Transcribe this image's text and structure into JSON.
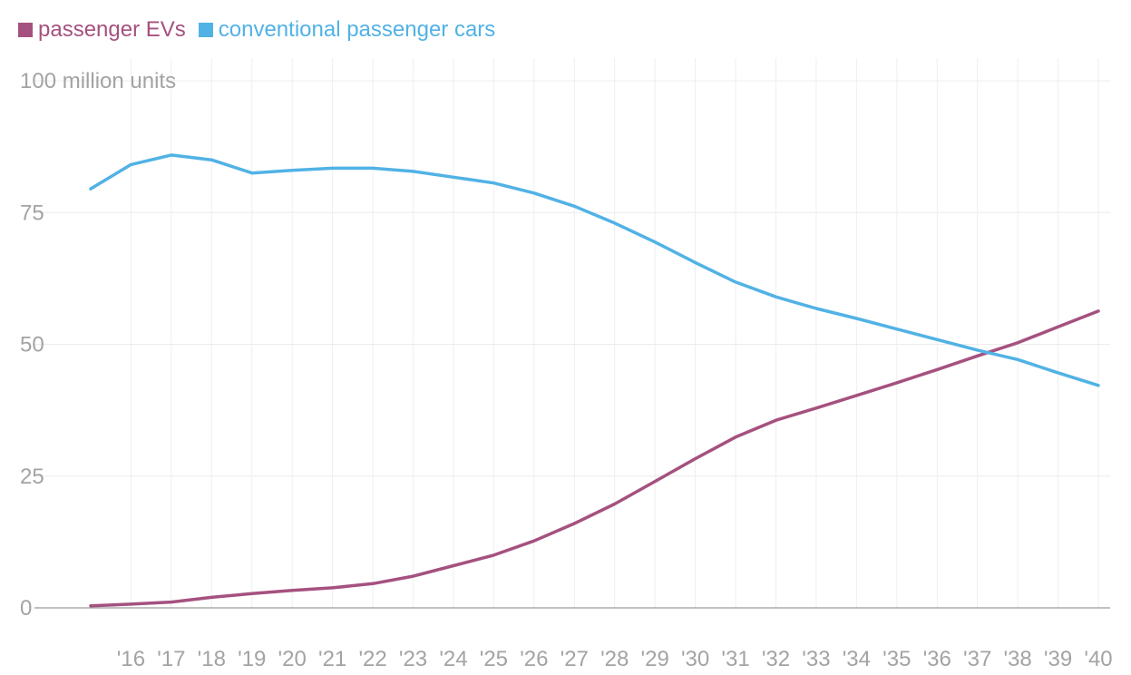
{
  "legend": {
    "items": [
      {
        "label": "passenger EVs",
        "color": "#a5517f"
      },
      {
        "label": "conventional passenger cars",
        "color": "#51b2e5"
      }
    ]
  },
  "chart_data": {
    "type": "line",
    "title": "",
    "xlabel": "",
    "ylabel": "",
    "y_unit_label": "100 million units",
    "x": [
      2015,
      2016,
      2017,
      2018,
      2019,
      2020,
      2021,
      2022,
      2023,
      2024,
      2025,
      2026,
      2027,
      2028,
      2029,
      2030,
      2031,
      2032,
      2033,
      2034,
      2035,
      2036,
      2037,
      2038,
      2039,
      2040
    ],
    "x_tick_labels": [
      "'16",
      "'17",
      "'18",
      "'19",
      "'20",
      "'21",
      "'22",
      "'23",
      "'24",
      "'25",
      "'26",
      "'27",
      "'28",
      "'29",
      "'30",
      "'31",
      "'32",
      "'33",
      "'34",
      "'35",
      "'36",
      "'37",
      "'38",
      "'39",
      "'40"
    ],
    "y_ticks": [
      0,
      25,
      50,
      75,
      100
    ],
    "y_tick_labels": [
      "0",
      "25",
      "50",
      "75",
      "100 million units"
    ],
    "ylim": [
      0,
      100
    ],
    "grid": true,
    "legend_position": "top-left",
    "series": [
      {
        "name": "passenger EVs",
        "color": "#a5517f",
        "values": [
          0.4,
          0.7,
          1.1,
          2.0,
          2.7,
          3.3,
          3.8,
          4.6,
          6.0,
          8.0,
          10.0,
          12.7,
          16.0,
          19.7,
          24.0,
          28.3,
          32.4,
          35.6,
          37.9,
          40.3,
          42.7,
          45.2,
          47.8,
          50.3,
          53.3,
          56.3
        ]
      },
      {
        "name": "conventional passenger cars",
        "color": "#51b2e5",
        "values": [
          79.5,
          84.1,
          85.9,
          85.0,
          82.5,
          83.0,
          83.4,
          83.4,
          82.8,
          81.7,
          80.6,
          78.7,
          76.2,
          73.0,
          69.4,
          65.5,
          61.8,
          59.0,
          56.8,
          54.9,
          52.9,
          50.9,
          48.9,
          47.1,
          44.6,
          42.2
        ]
      }
    ]
  }
}
